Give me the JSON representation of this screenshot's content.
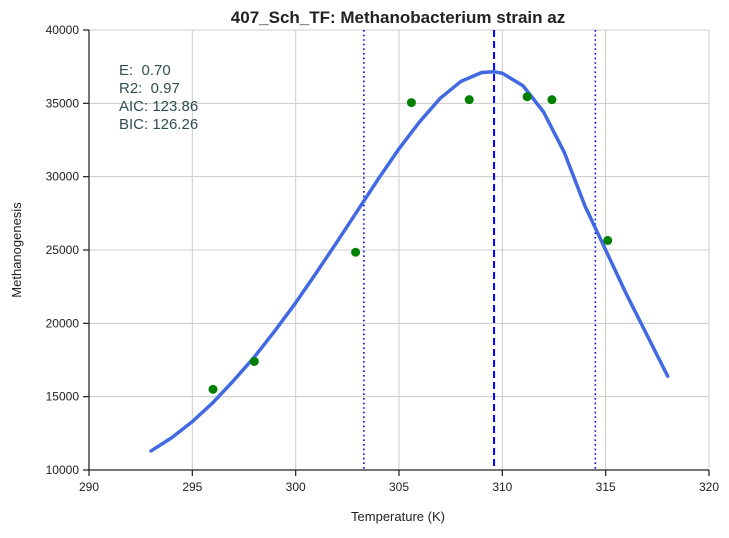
{
  "chart_data": {
    "type": "scatter",
    "title": "407_Sch_TF: Methanobacterium strain az",
    "xlabel": "Temperature (K)",
    "ylabel": "Methanogenesis",
    "xlim": [
      290,
      320
    ],
    "ylim": [
      10000,
      40000
    ],
    "xticks": [
      290,
      295,
      300,
      305,
      310,
      315,
      320
    ],
    "yticks": [
      10000,
      15000,
      20000,
      25000,
      30000,
      35000,
      40000
    ],
    "grid": true,
    "stats": [
      "E:  0.70",
      "R2:  0.97",
      "AIC: 123.86",
      "BIC: 126.26"
    ],
    "points": {
      "color": "#008000",
      "x": [
        296.0,
        298.0,
        302.9,
        305.6,
        308.4,
        311.2,
        312.4,
        315.1
      ],
      "y": [
        15500,
        17400,
        24850,
        35050,
        35250,
        35450,
        35250,
        25650
      ]
    },
    "fit_curve": {
      "color": "#4169e1",
      "x": [
        293.0,
        294.0,
        295.0,
        296.0,
        297.0,
        298.0,
        299.0,
        300.0,
        301.0,
        302.0,
        303.0,
        304.0,
        305.0,
        306.0,
        307.0,
        308.0,
        309.0,
        309.6,
        310.0,
        311.0,
        312.0,
        313.0,
        314.0,
        315.0,
        316.0,
        317.0,
        318.0
      ],
      "y": [
        11300,
        12200,
        13300,
        14600,
        16100,
        17700,
        19500,
        21400,
        23450,
        25550,
        27700,
        29850,
        31900,
        33750,
        35350,
        36500,
        37100,
        37150,
        37050,
        36200,
        34400,
        31650,
        28000,
        25000,
        22000,
        19200,
        16400
      ]
    },
    "vlines": [
      {
        "x": 303.3,
        "style": "dotted",
        "color": "#0000ff"
      },
      {
        "x": 309.6,
        "style": "dashed",
        "color": "#0000ff"
      },
      {
        "x": 314.5,
        "style": "dotted",
        "color": "#0000ff"
      }
    ]
  }
}
